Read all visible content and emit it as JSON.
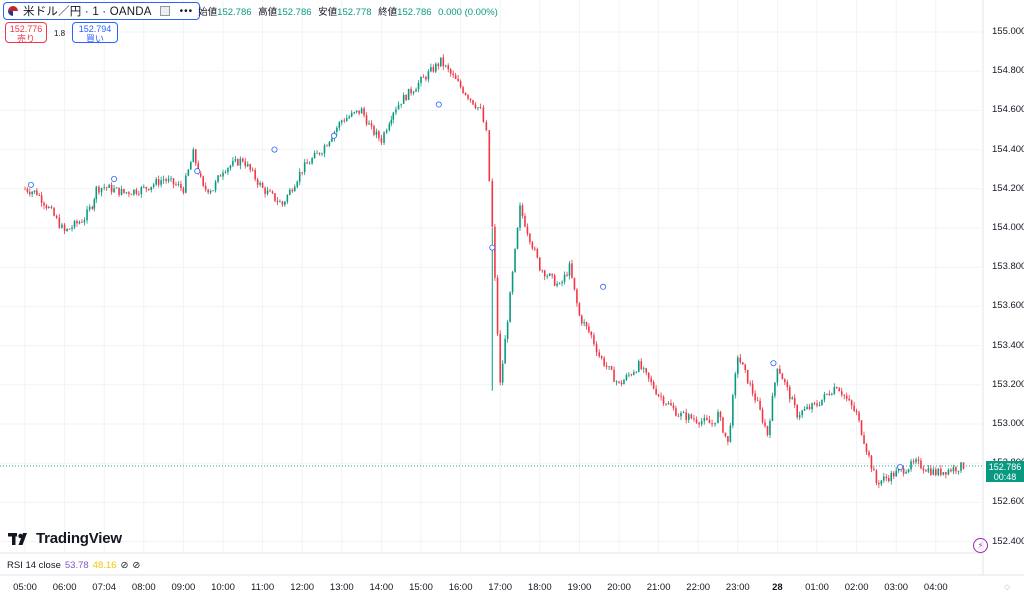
{
  "header": {
    "symbol": "米ドル／円 · 1 · OANDA",
    "more": "•••",
    "open_label": "始値",
    "open_value": "152.786",
    "high_label": "高値",
    "high_value": "152.786",
    "low_label": "安値",
    "low_value": "152.778",
    "close_label": "終値",
    "close_value": "152.786",
    "change": "0.000 (0.00%)"
  },
  "trade": {
    "sell_price": "152.776",
    "sell_label": "売り",
    "spread": "1.8",
    "buy_price": "152.794",
    "buy_label": "買い"
  },
  "price_tag": {
    "price": "152.786",
    "countdown": "00:48"
  },
  "y_axis": [
    "155.000",
    "154.800",
    "154.600",
    "154.400",
    "154.200",
    "154.000",
    "153.800",
    "153.600",
    "153.400",
    "153.200",
    "153.000",
    "152.800",
    "152.600",
    "152.400"
  ],
  "x_axis": [
    "05:00",
    "06:00",
    "07:04",
    "08:00",
    "09:00",
    "10:00",
    "11:00",
    "12:00",
    "13:00",
    "14:00",
    "15:00",
    "16:00",
    "17:00",
    "18:00",
    "19:00",
    "20:00",
    "21:00",
    "22:00",
    "23:00",
    "28",
    "01:00",
    "02:00",
    "03:00",
    "04:00"
  ],
  "logo": "TradingView",
  "indicator": {
    "label": "RSI 14 close",
    "rsi": "53.78",
    "ma": "48.16"
  },
  "colors": {
    "up": "#089981",
    "down": "#f23645",
    "accent": "#2962ff"
  },
  "chart_data": {
    "type": "line",
    "symbol": "USDJPY",
    "timeframe": "1",
    "ylim": [
      152.4,
      155.0
    ],
    "last_price": 152.786,
    "path_x": [
      0,
      0.6,
      1.2,
      2,
      3,
      3.4,
      3.6,
      4,
      5,
      6,
      7,
      8,
      8.5,
      9,
      9.5,
      10,
      11,
      12,
      13,
      14,
      15,
      16,
      17,
      17.5,
      18,
      18.4,
      18.6,
      19,
      20,
      21,
      22,
      23,
      23.3,
      23.6,
      24,
      25,
      26,
      27,
      27.5,
      28,
      28.6,
      29,
      30,
      31,
      32,
      33,
      34.7
    ],
    "path_y": [
      154.2,
      154.18,
      154.1,
      153.98,
      154.05,
      154.12,
      154.2,
      154.21,
      154.18,
      154.2,
      154.25,
      154.2,
      154.38,
      154.2,
      154.2,
      154.3,
      154.35,
      154.2,
      154.12,
      154.3,
      154.4,
      154.55,
      154.6,
      154.5,
      154.45,
      154.55,
      154.6,
      154.65,
      154.75,
      154.85,
      154.72,
      154.6,
      154.48,
      154.0,
      153.2,
      154.1,
      153.8,
      153.7,
      153.8,
      153.55,
      153.45,
      153.35,
      153.2,
      153.3,
      153.15,
      153.05,
      153.0
    ],
    "path_x2": [
      34.7,
      35,
      35.5,
      36,
      37,
      37.5,
      38,
      39,
      40,
      41,
      42,
      43,
      44,
      45,
      46,
      47.4
    ],
    "path_y2": [
      153.0,
      153.05,
      152.9,
      153.35,
      153.1,
      152.95,
      153.3,
      153.05,
      153.1,
      153.2,
      153.05,
      152.7,
      152.75,
      152.8,
      152.75,
      152.786
    ]
  }
}
